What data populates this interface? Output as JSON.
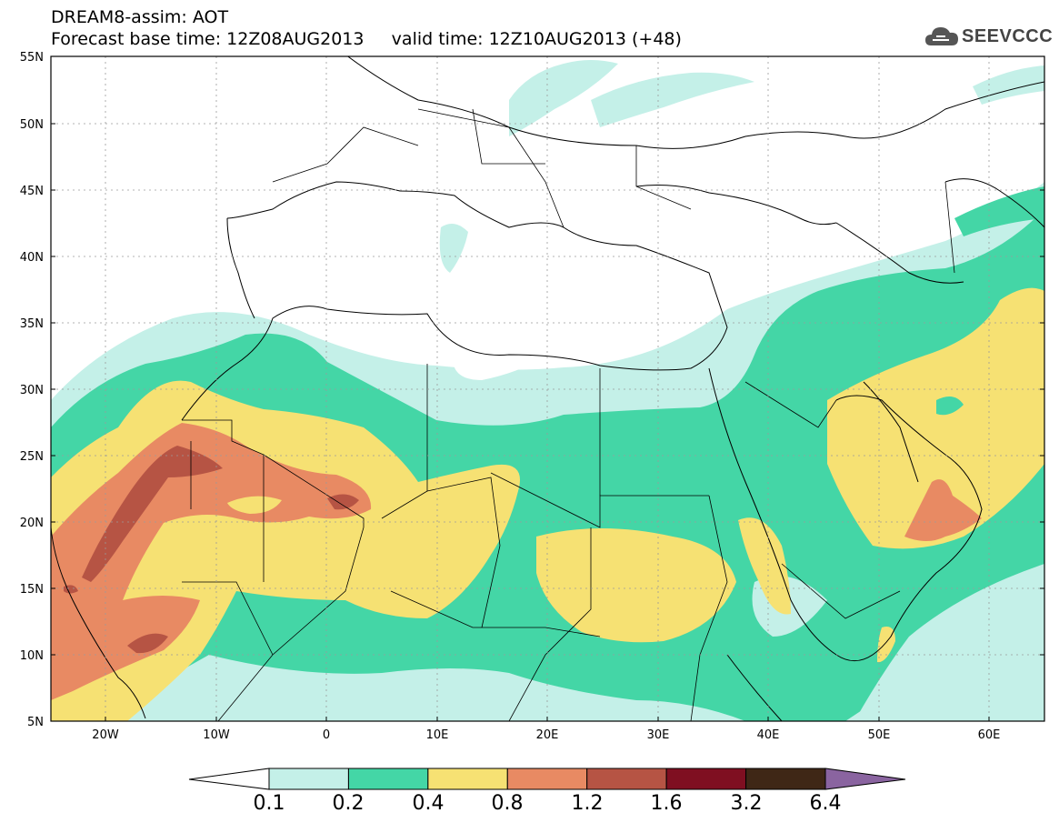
{
  "title": {
    "line1": "DREAM8-assim: AOT",
    "line2": "Forecast base time: 12Z08AUG2013     valid time: 12Z10AUG2013 (+48)"
  },
  "logo": {
    "text": "SEEVCCC",
    "icon": "cloud-icon"
  },
  "axes": {
    "lat_labels": [
      "55N",
      "50N",
      "45N",
      "40N",
      "35N",
      "30N",
      "25N",
      "20N",
      "15N",
      "10N",
      "5N"
    ],
    "lon_labels": [
      "20W",
      "10W",
      "0",
      "10E",
      "20E",
      "30E",
      "40E",
      "50E",
      "60E"
    ]
  },
  "colorbar": {
    "labels": [
      "0.1",
      "0.2",
      "0.4",
      "0.8",
      "1.2",
      "1.6",
      "3.2",
      "6.4"
    ],
    "colors": [
      "#ffffff",
      "#c4f0e8",
      "#44d6a6",
      "#f6e173",
      "#e88a63",
      "#b65444",
      "#7f0f21",
      "#3f2716",
      "#8a64a0"
    ]
  },
  "map_data": {
    "lon_range": [
      -25,
      65
    ],
    "lat_range": [
      5,
      55
    ],
    "field": "AOT",
    "grid_dashed": true
  }
}
